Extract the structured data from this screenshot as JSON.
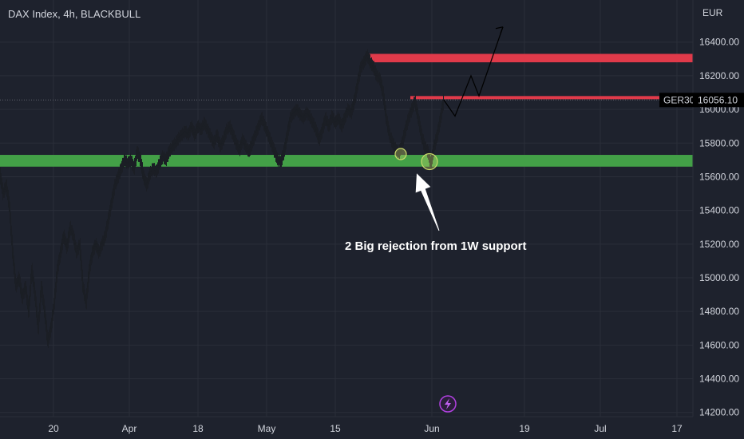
{
  "chart_data": {
    "type": "candlestick",
    "title": "DAX Index, 4h, BLACKBULL",
    "currency": "EUR",
    "y_ticks": [
      16400,
      16200,
      16000,
      15800,
      15600,
      15400,
      15200,
      15000,
      14800,
      14600,
      14400,
      14200
    ],
    "y_tick_labels": [
      "16400.00",
      "16200.00",
      "16000.00",
      "15800.00",
      "15600.00",
      "15400.00",
      "15200.00",
      "15000.00",
      "14800.00",
      "14600.00",
      "14400.00",
      "14200.00"
    ],
    "ylim": [
      14175,
      16650
    ],
    "x_labels": [
      "20",
      "Apr",
      "18",
      "May",
      "15",
      "Jun",
      "19",
      "Jul",
      "17"
    ],
    "resistance_zone": [
      16280,
      16330
    ],
    "support_zone": [
      15660,
      15730
    ],
    "secondary_resistance": 16070,
    "last_price": {
      "symbol": "GER30",
      "value": 16056.1,
      "label": "16056.10"
    },
    "annotation": "2 Big rejection from 1W support",
    "price_path": [
      {
        "x": 0,
        "y": 15620
      },
      {
        "x": 4,
        "y": 15500
      },
      {
        "x": 8,
        "y": 15550
      },
      {
        "x": 12,
        "y": 15420
      },
      {
        "x": 16,
        "y": 15150
      },
      {
        "x": 20,
        "y": 14950
      },
      {
        "x": 24,
        "y": 15000
      },
      {
        "x": 28,
        "y": 14880
      },
      {
        "x": 32,
        "y": 14950
      },
      {
        "x": 36,
        "y": 14800
      },
      {
        "x": 40,
        "y": 15050
      },
      {
        "x": 44,
        "y": 14900
      },
      {
        "x": 48,
        "y": 14700
      },
      {
        "x": 52,
        "y": 14950
      },
      {
        "x": 56,
        "y": 14800
      },
      {
        "x": 60,
        "y": 14620
      },
      {
        "x": 64,
        "y": 14700
      },
      {
        "x": 68,
        "y": 14850
      },
      {
        "x": 72,
        "y": 15050
      },
      {
        "x": 76,
        "y": 15150
      },
      {
        "x": 80,
        "y": 15250
      },
      {
        "x": 84,
        "y": 15180
      },
      {
        "x": 88,
        "y": 15300
      },
      {
        "x": 92,
        "y": 15250
      },
      {
        "x": 96,
        "y": 15150
      },
      {
        "x": 100,
        "y": 15200
      },
      {
        "x": 104,
        "y": 14950
      },
      {
        "x": 108,
        "y": 14850
      },
      {
        "x": 112,
        "y": 15050
      },
      {
        "x": 116,
        "y": 15150
      },
      {
        "x": 120,
        "y": 15200
      },
      {
        "x": 124,
        "y": 15150
      },
      {
        "x": 128,
        "y": 15200
      },
      {
        "x": 132,
        "y": 15250
      },
      {
        "x": 136,
        "y": 15350
      },
      {
        "x": 140,
        "y": 15450
      },
      {
        "x": 144,
        "y": 15550
      },
      {
        "x": 148,
        "y": 15600
      },
      {
        "x": 152,
        "y": 15650
      },
      {
        "x": 156,
        "y": 15700
      },
      {
        "x": 160,
        "y": 15680
      },
      {
        "x": 164,
        "y": 15700
      },
      {
        "x": 168,
        "y": 15650
      },
      {
        "x": 172,
        "y": 15750
      },
      {
        "x": 176,
        "y": 15700
      },
      {
        "x": 180,
        "y": 15600
      },
      {
        "x": 184,
        "y": 15550
      },
      {
        "x": 188,
        "y": 15620
      },
      {
        "x": 192,
        "y": 15650
      },
      {
        "x": 196,
        "y": 15630
      },
      {
        "x": 200,
        "y": 15680
      },
      {
        "x": 204,
        "y": 15720
      },
      {
        "x": 208,
        "y": 15700
      },
      {
        "x": 212,
        "y": 15750
      },
      {
        "x": 216,
        "y": 15780
      },
      {
        "x": 220,
        "y": 15800
      },
      {
        "x": 224,
        "y": 15830
      },
      {
        "x": 228,
        "y": 15850
      },
      {
        "x": 232,
        "y": 15870
      },
      {
        "x": 236,
        "y": 15850
      },
      {
        "x": 240,
        "y": 15900
      },
      {
        "x": 244,
        "y": 15850
      },
      {
        "x": 248,
        "y": 15900
      },
      {
        "x": 252,
        "y": 15880
      },
      {
        "x": 256,
        "y": 15920
      },
      {
        "x": 260,
        "y": 15880
      },
      {
        "x": 264,
        "y": 15840
      },
      {
        "x": 268,
        "y": 15800
      },
      {
        "x": 272,
        "y": 15850
      },
      {
        "x": 276,
        "y": 15780
      },
      {
        "x": 280,
        "y": 15820
      },
      {
        "x": 284,
        "y": 15880
      },
      {
        "x": 288,
        "y": 15900
      },
      {
        "x": 292,
        "y": 15850
      },
      {
        "x": 296,
        "y": 15800
      },
      {
        "x": 300,
        "y": 15760
      },
      {
        "x": 304,
        "y": 15820
      },
      {
        "x": 308,
        "y": 15780
      },
      {
        "x": 312,
        "y": 15750
      },
      {
        "x": 316,
        "y": 15800
      },
      {
        "x": 320,
        "y": 15850
      },
      {
        "x": 324,
        "y": 15900
      },
      {
        "x": 328,
        "y": 15950
      },
      {
        "x": 332,
        "y": 15900
      },
      {
        "x": 336,
        "y": 15850
      },
      {
        "x": 340,
        "y": 15800
      },
      {
        "x": 344,
        "y": 15750
      },
      {
        "x": 348,
        "y": 15700
      },
      {
        "x": 352,
        "y": 15690
      },
      {
        "x": 356,
        "y": 15750
      },
      {
        "x": 360,
        "y": 15850
      },
      {
        "x": 364,
        "y": 15950
      },
      {
        "x": 368,
        "y": 15980
      },
      {
        "x": 372,
        "y": 16000
      },
      {
        "x": 376,
        "y": 15970
      },
      {
        "x": 380,
        "y": 15950
      },
      {
        "x": 384,
        "y": 15980
      },
      {
        "x": 388,
        "y": 15960
      },
      {
        "x": 392,
        "y": 15920
      },
      {
        "x": 396,
        "y": 15880
      },
      {
        "x": 400,
        "y": 15820
      },
      {
        "x": 404,
        "y": 15880
      },
      {
        "x": 408,
        "y": 15950
      },
      {
        "x": 412,
        "y": 15900
      },
      {
        "x": 416,
        "y": 15960
      },
      {
        "x": 420,
        "y": 15920
      },
      {
        "x": 424,
        "y": 15950
      },
      {
        "x": 428,
        "y": 15900
      },
      {
        "x": 432,
        "y": 15950
      },
      {
        "x": 436,
        "y": 16000
      },
      {
        "x": 440,
        "y": 15980
      },
      {
        "x": 444,
        "y": 16050
      },
      {
        "x": 448,
        "y": 16150
      },
      {
        "x": 452,
        "y": 16250
      },
      {
        "x": 456,
        "y": 16280
      },
      {
        "x": 460,
        "y": 16320
      },
      {
        "x": 464,
        "y": 16280
      },
      {
        "x": 468,
        "y": 16250
      },
      {
        "x": 472,
        "y": 16200
      },
      {
        "x": 476,
        "y": 16180
      },
      {
        "x": 480,
        "y": 16100
      },
      {
        "x": 484,
        "y": 15950
      },
      {
        "x": 488,
        "y": 15850
      },
      {
        "x": 492,
        "y": 15800
      },
      {
        "x": 496,
        "y": 15760
      },
      {
        "x": 500,
        "y": 15740
      },
      {
        "x": 504,
        "y": 15800
      },
      {
        "x": 508,
        "y": 15880
      },
      {
        "x": 512,
        "y": 15950
      },
      {
        "x": 516,
        "y": 16000
      },
      {
        "x": 520,
        "y": 16050
      },
      {
        "x": 524,
        "y": 15950
      },
      {
        "x": 528,
        "y": 15850
      },
      {
        "x": 532,
        "y": 15780
      },
      {
        "x": 536,
        "y": 15750
      },
      {
        "x": 540,
        "y": 15680
      },
      {
        "x": 544,
        "y": 15780
      },
      {
        "x": 548,
        "y": 15850
      },
      {
        "x": 552,
        "y": 15950
      },
      {
        "x": 556,
        "y": 16056
      }
    ],
    "projection_path": [
      {
        "x": 556,
        "y": 16056
      },
      {
        "x": 570,
        "y": 15960
      },
      {
        "x": 590,
        "y": 16200
      },
      {
        "x": 600,
        "y": 16080
      },
      {
        "x": 630,
        "y": 16490
      }
    ],
    "rejection_circles": [
      {
        "x": 502,
        "y": 15735
      },
      {
        "x": 538,
        "y": 15690
      }
    ],
    "arrow": {
      "from": {
        "x": 550,
        "y": 15280
      },
      "to": {
        "x": 522,
        "y": 15620
      }
    }
  },
  "colors": {
    "background": "#1e222d",
    "grid": "#2a2e39",
    "resistance": "#e03a4a",
    "support": "#43a047",
    "candles": "#1b1e25",
    "circle": "#c9d96b",
    "last_price_bg": "#000000"
  },
  "lightning_icon": "lightning-icon"
}
